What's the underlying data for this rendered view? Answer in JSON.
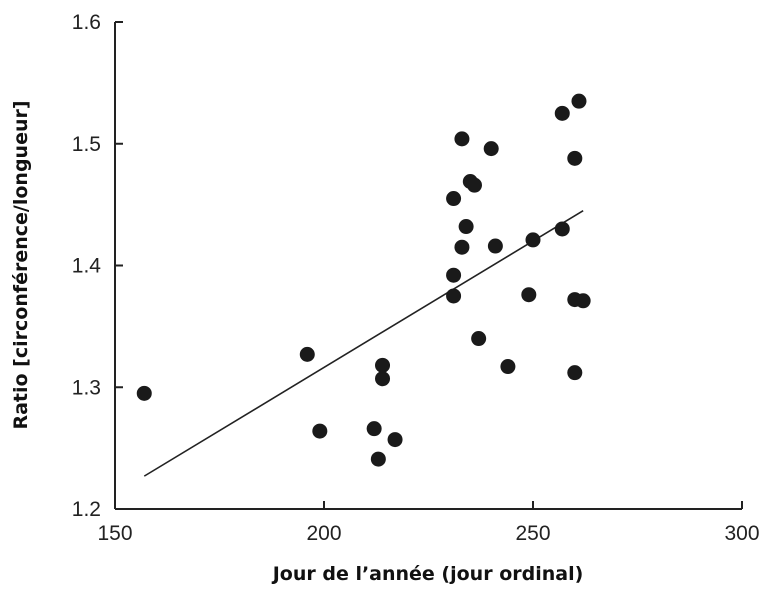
{
  "chart_data": {
    "type": "scatter",
    "title": "",
    "xlabel": "Jour de l’année (jour ordinal)",
    "ylabel": "Ratio [circonférence/longueur]",
    "xlim": [
      150,
      300
    ],
    "ylim": [
      1.2,
      1.6
    ],
    "xticks": [
      150,
      200,
      250,
      300
    ],
    "yticks": [
      1.2,
      1.3,
      1.4,
      1.5,
      1.6
    ],
    "xtick_labels": [
      "150",
      "200",
      "250",
      "300"
    ],
    "ytick_labels": [
      "1.2",
      "1.3",
      "1.4",
      "1.5",
      "1.6"
    ],
    "grid": false,
    "point_color": "#1a1a1a",
    "line_color": "#222222",
    "points": [
      {
        "x": 157,
        "y": 1.295
      },
      {
        "x": 196,
        "y": 1.327
      },
      {
        "x": 199,
        "y": 1.264
      },
      {
        "x": 212,
        "y": 1.266
      },
      {
        "x": 213,
        "y": 1.241
      },
      {
        "x": 214,
        "y": 1.318
      },
      {
        "x": 214,
        "y": 1.307
      },
      {
        "x": 217,
        "y": 1.257
      },
      {
        "x": 231,
        "y": 1.455
      },
      {
        "x": 231,
        "y": 1.392
      },
      {
        "x": 231,
        "y": 1.375
      },
      {
        "x": 233,
        "y": 1.504
      },
      {
        "x": 233,
        "y": 1.415
      },
      {
        "x": 234,
        "y": 1.432
      },
      {
        "x": 235,
        "y": 1.469
      },
      {
        "x": 236,
        "y": 1.466
      },
      {
        "x": 237,
        "y": 1.34
      },
      {
        "x": 240,
        "y": 1.496
      },
      {
        "x": 241,
        "y": 1.416
      },
      {
        "x": 244,
        "y": 1.317
      },
      {
        "x": 249,
        "y": 1.376
      },
      {
        "x": 250,
        "y": 1.421
      },
      {
        "x": 257,
        "y": 1.525
      },
      {
        "x": 257,
        "y": 1.43
      },
      {
        "x": 260,
        "y": 1.488
      },
      {
        "x": 260,
        "y": 1.372
      },
      {
        "x": 260,
        "y": 1.312
      },
      {
        "x": 261,
        "y": 1.535
      },
      {
        "x": 262,
        "y": 1.371
      }
    ],
    "trend_line": {
      "x": [
        157,
        262
      ],
      "y": [
        1.227,
        1.445
      ]
    }
  }
}
